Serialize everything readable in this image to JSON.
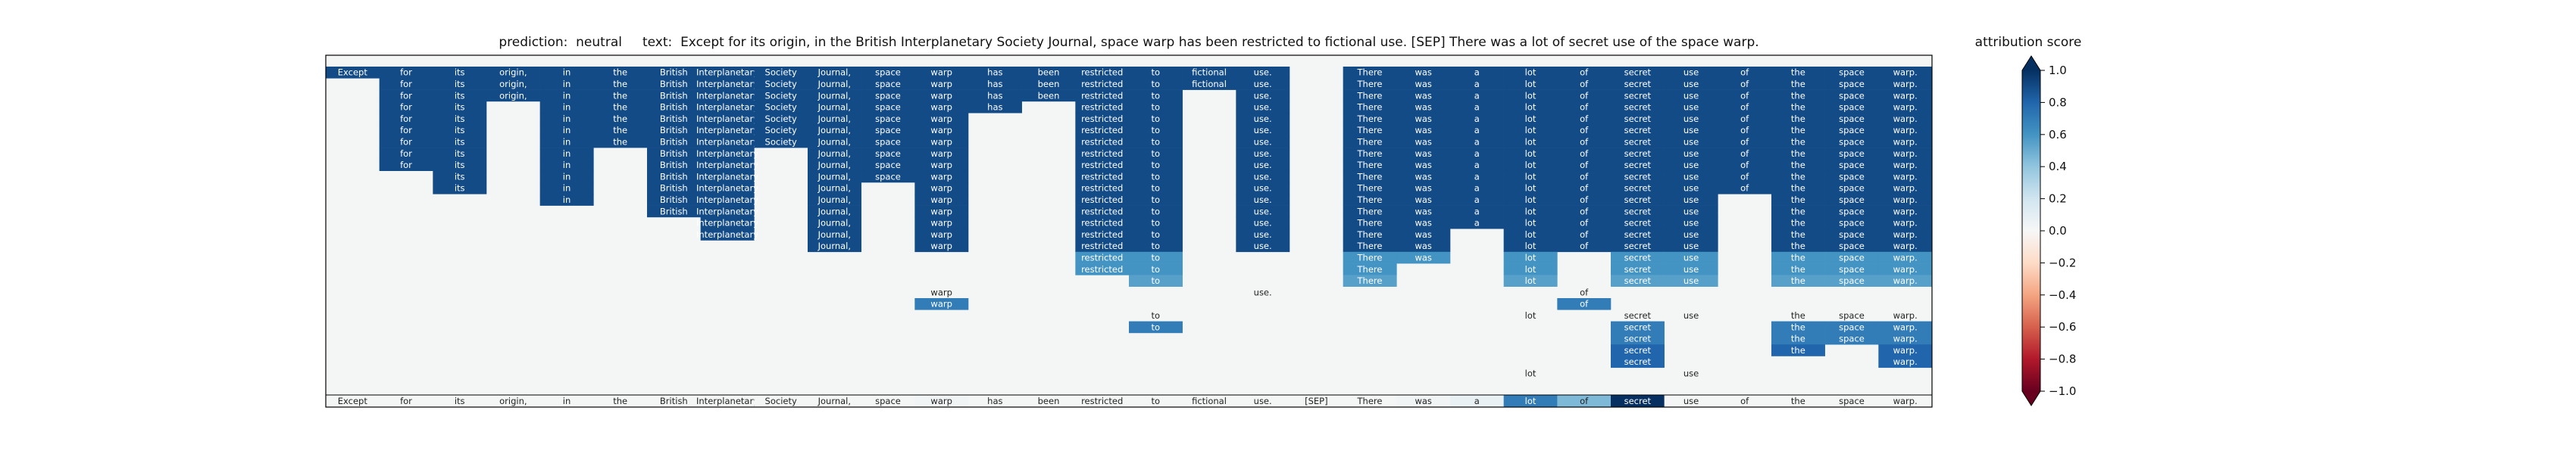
{
  "header": {
    "title": "prediction:  neutral     text:  Except for its origin, in the British Interplanetary Society Journal, space warp has been restricted to fictional use. [SEP] There was a lot of secret use of the space warp."
  },
  "colorbar": {
    "title": "attribution score",
    "ticks": [
      "1.0",
      "0.8",
      "0.6",
      "0.4",
      "0.2",
      "0.0",
      "−0.2",
      "−0.4",
      "−0.6",
      "−0.8",
      "−1.0"
    ]
  },
  "chart_data": {
    "type": "heatmap",
    "title": "prediction:  neutral     text:  Except for its origin, in the British Interplanetary Society Journal, space warp has been restricted to fictional use. [SEP] There was a lot of secret use of the space warp.",
    "xlabel": "",
    "ylabel": "",
    "value_range": [
      -1.0,
      1.0
    ],
    "colormap": "RdBu",
    "background_color": "#f4f6f6",
    "tokens": [
      "Except",
      "for",
      "its",
      "origin,",
      "in",
      "the",
      "British",
      "Interplanetary",
      "Society",
      "Journal,",
      "space",
      "warp",
      "has",
      "been",
      "restricted",
      "to",
      "fictional",
      "use.",
      "[SEP]",
      "There",
      "was",
      "a",
      "lot",
      "of",
      "secret",
      "use",
      "of",
      "the",
      "space",
      "warp."
    ],
    "layers": [
      {
        "label": "Except for its origin, in the British Interplanetary Society Journal, space warp has been restricted to fictional use. There was a lot of secret use of the space warp.",
        "values": [
          0.9,
          0.9,
          0.9,
          0.9,
          0.9,
          0.9,
          0.9,
          0.9,
          0.9,
          0.9,
          0.9,
          0.9,
          0.9,
          0.9,
          0.9,
          0.9,
          0.9,
          0.9,
          null,
          0.9,
          0.9,
          0.9,
          0.9,
          0.9,
          0.9,
          0.9,
          0.9,
          0.9,
          0.9,
          0.9
        ]
      },
      {
        "label": "for its origin, in the British Interplanetary Society Journal, space warp has been restricted to fictional use. There was a lot of secret use of the space warp.",
        "values": [
          null,
          0.9,
          0.9,
          0.9,
          0.9,
          0.9,
          0.9,
          0.9,
          0.9,
          0.9,
          0.9,
          0.9,
          0.9,
          0.9,
          0.9,
          0.9,
          0.9,
          0.9,
          null,
          0.9,
          0.9,
          0.9,
          0.9,
          0.9,
          0.9,
          0.9,
          0.9,
          0.9,
          0.9,
          0.9
        ]
      },
      {
        "label": "for its origin, in the British Interplanetary Society Journal, space warp has been restricted to use. There was a lot of secret use of the space warp.",
        "values": [
          null,
          0.9,
          0.9,
          0.9,
          0.9,
          0.9,
          0.9,
          0.9,
          0.9,
          0.9,
          0.9,
          0.9,
          0.9,
          0.9,
          0.9,
          0.9,
          null,
          0.9,
          null,
          0.9,
          0.9,
          0.9,
          0.9,
          0.9,
          0.9,
          0.9,
          0.9,
          0.9,
          0.9,
          0.9
        ]
      },
      {
        "label": "for its in the British Interplanetary Society Journal, space warp has restricted to use. There was a lot of secret use of the space warp.",
        "values": [
          null,
          0.9,
          0.9,
          null,
          0.9,
          0.9,
          0.9,
          0.9,
          0.9,
          0.9,
          0.9,
          0.9,
          0.9,
          null,
          0.9,
          0.9,
          null,
          0.9,
          null,
          0.9,
          0.9,
          0.9,
          0.9,
          0.9,
          0.9,
          0.9,
          0.9,
          0.9,
          0.9,
          0.9
        ]
      },
      {
        "label": "for its in the British Interplanetary Society Journal, space warp restricted to use. There was a lot of secret use of the space warp.",
        "values": [
          null,
          0.9,
          0.9,
          null,
          0.9,
          0.9,
          0.9,
          0.9,
          0.9,
          0.9,
          0.9,
          0.9,
          null,
          null,
          0.9,
          0.9,
          null,
          0.9,
          null,
          0.9,
          0.9,
          0.9,
          0.9,
          0.9,
          0.9,
          0.9,
          0.9,
          0.9,
          0.9,
          0.9
        ]
      },
      {
        "label": "for its in the British Interplanetary Society Journal, space warp restricted to use. There was a lot of secret use of the space warp.",
        "values": [
          null,
          0.9,
          0.9,
          null,
          0.9,
          0.9,
          0.9,
          0.9,
          0.9,
          0.9,
          0.9,
          0.9,
          null,
          null,
          0.9,
          0.9,
          null,
          0.9,
          null,
          0.9,
          0.9,
          0.9,
          0.9,
          0.9,
          0.9,
          0.9,
          0.9,
          0.9,
          0.9,
          0.9
        ]
      },
      {
        "label": "for its in the British Interplanetary Society Journal, space warp restricted to use. There was a lot of secret use of the space warp.",
        "values": [
          null,
          0.9,
          0.9,
          null,
          0.9,
          0.9,
          0.9,
          0.9,
          0.9,
          0.9,
          0.9,
          0.9,
          null,
          null,
          0.9,
          0.9,
          null,
          0.9,
          null,
          0.9,
          0.9,
          0.9,
          0.9,
          0.9,
          0.9,
          0.9,
          0.9,
          0.9,
          0.9,
          0.9
        ]
      },
      {
        "label": "for its in British Interplanetary Journal, space warp restricted to use. There was a lot of secret use of the space warp.",
        "values": [
          null,
          0.9,
          0.9,
          null,
          0.9,
          null,
          0.9,
          0.9,
          null,
          0.9,
          0.9,
          0.9,
          null,
          null,
          0.9,
          0.9,
          null,
          0.9,
          null,
          0.9,
          0.9,
          0.9,
          0.9,
          0.9,
          0.9,
          0.9,
          0.9,
          0.9,
          0.9,
          0.9
        ]
      },
      {
        "label": "for its in British Interplanetary Journal, space warp restricted to use. There was a lot of secret use of the space warp.",
        "values": [
          null,
          0.9,
          0.9,
          null,
          0.9,
          null,
          0.9,
          0.9,
          null,
          0.9,
          0.9,
          0.9,
          null,
          null,
          0.9,
          0.9,
          null,
          0.9,
          null,
          0.9,
          0.9,
          0.9,
          0.9,
          0.9,
          0.9,
          0.9,
          0.9,
          0.9,
          0.9,
          0.9
        ]
      },
      {
        "label": "its in British Interplanetary Journal, space warp restricted to use. There was a lot of secret use of the space warp.",
        "values": [
          null,
          null,
          0.9,
          null,
          0.9,
          null,
          0.9,
          0.9,
          null,
          0.9,
          0.9,
          0.9,
          null,
          null,
          0.9,
          0.9,
          null,
          0.9,
          null,
          0.9,
          0.9,
          0.9,
          0.9,
          0.9,
          0.9,
          0.9,
          0.9,
          0.9,
          0.9,
          0.9
        ]
      },
      {
        "label": "its in British Interplanetary Journal, warp restricted to use. There was a lot of secret use of the space warp.",
        "values": [
          null,
          null,
          0.9,
          null,
          0.9,
          null,
          0.9,
          0.9,
          null,
          0.9,
          null,
          0.9,
          null,
          null,
          0.9,
          0.9,
          null,
          0.9,
          null,
          0.9,
          0.9,
          0.9,
          0.9,
          0.9,
          0.9,
          0.9,
          0.9,
          0.9,
          0.9,
          0.9
        ]
      },
      {
        "label": "in British Interplanetary Journal, warp restricted to use. There was a lot of secret use the space warp.",
        "values": [
          null,
          null,
          null,
          null,
          0.9,
          null,
          0.9,
          0.9,
          null,
          0.9,
          null,
          0.9,
          null,
          null,
          0.9,
          0.9,
          null,
          0.9,
          null,
          0.9,
          0.9,
          0.9,
          0.9,
          0.9,
          0.9,
          0.9,
          null,
          0.9,
          0.9,
          0.9
        ]
      },
      {
        "label": "British Interplanetary Journal, warp restricted to use. There was a lot of secret use the space warp.",
        "values": [
          null,
          null,
          null,
          null,
          null,
          null,
          0.9,
          0.9,
          null,
          0.9,
          null,
          0.9,
          null,
          null,
          0.9,
          0.9,
          null,
          0.9,
          null,
          0.9,
          0.9,
          0.9,
          0.9,
          0.9,
          0.9,
          0.9,
          null,
          0.9,
          0.9,
          0.9
        ]
      },
      {
        "label": "Interplanetary Journal, warp restricted to use. There was a lot of secret use the space warp.",
        "values": [
          null,
          null,
          null,
          null,
          null,
          null,
          null,
          0.9,
          null,
          0.9,
          null,
          0.9,
          null,
          null,
          0.9,
          0.9,
          null,
          0.9,
          null,
          0.9,
          0.9,
          0.9,
          0.9,
          0.9,
          0.9,
          0.9,
          null,
          0.9,
          0.9,
          0.9
        ]
      },
      {
        "label": "Interplanetary Journal, warp restricted to use. There was lot of secret use the space warp.",
        "values": [
          null,
          null,
          null,
          null,
          null,
          null,
          null,
          0.9,
          null,
          0.9,
          null,
          0.9,
          null,
          null,
          0.9,
          0.9,
          null,
          0.9,
          null,
          0.9,
          0.9,
          null,
          0.9,
          0.9,
          0.9,
          0.9,
          null,
          0.9,
          0.9,
          0.9
        ]
      },
      {
        "label": "Journal, warp restricted to use. There was lot of secret use the space warp.",
        "values": [
          null,
          null,
          null,
          null,
          null,
          null,
          null,
          null,
          null,
          0.9,
          null,
          0.9,
          null,
          null,
          0.9,
          0.9,
          null,
          0.9,
          null,
          0.9,
          0.9,
          null,
          0.9,
          0.9,
          0.9,
          0.9,
          null,
          0.9,
          0.9,
          0.9
        ]
      },
      {
        "label": "restricted to There was lot secret use the space warp.",
        "values": [
          null,
          null,
          null,
          null,
          null,
          null,
          null,
          null,
          null,
          null,
          null,
          null,
          null,
          null,
          0.6,
          0.6,
          null,
          null,
          null,
          0.6,
          0.6,
          null,
          0.6,
          null,
          0.6,
          0.6,
          null,
          0.6,
          0.6,
          0.6
        ]
      },
      {
        "label": "restricted to There lot secret use the space warp.",
        "values": [
          null,
          null,
          null,
          null,
          null,
          null,
          null,
          null,
          null,
          null,
          null,
          null,
          null,
          null,
          0.6,
          0.6,
          null,
          null,
          null,
          0.6,
          null,
          null,
          0.6,
          null,
          0.6,
          0.6,
          null,
          0.6,
          0.6,
          0.6
        ]
      },
      {
        "label": "to There lot secret use the space warp.",
        "values": [
          null,
          null,
          null,
          null,
          null,
          null,
          null,
          null,
          null,
          null,
          null,
          null,
          null,
          null,
          null,
          0.55,
          null,
          null,
          null,
          0.55,
          null,
          null,
          0.55,
          null,
          0.55,
          0.55,
          null,
          0.55,
          0.55,
          0.55
        ]
      },
      {
        "label": "warp use. of",
        "values": [
          null,
          null,
          null,
          null,
          null,
          null,
          null,
          null,
          null,
          null,
          null,
          0.0,
          null,
          null,
          null,
          null,
          null,
          0.0,
          null,
          null,
          null,
          null,
          null,
          0.0,
          null,
          null,
          null,
          null,
          null,
          null
        ]
      },
      {
        "label": "warp of",
        "values": [
          null,
          null,
          null,
          null,
          null,
          null,
          null,
          null,
          null,
          null,
          null,
          0.7,
          null,
          null,
          null,
          null,
          null,
          null,
          null,
          null,
          null,
          null,
          null,
          0.7,
          null,
          null,
          null,
          null,
          null,
          null
        ]
      },
      {
        "label": "to lot secret use the space warp.",
        "values": [
          null,
          null,
          null,
          null,
          null,
          null,
          null,
          null,
          null,
          null,
          null,
          null,
          null,
          null,
          null,
          0.0,
          null,
          null,
          null,
          null,
          null,
          null,
          0.0,
          null,
          0.0,
          0.0,
          null,
          0.0,
          0.0,
          0.0
        ]
      },
      {
        "label": "to secret the space warp.",
        "values": [
          null,
          null,
          null,
          null,
          null,
          null,
          null,
          null,
          null,
          null,
          null,
          null,
          null,
          null,
          null,
          0.7,
          null,
          null,
          null,
          null,
          null,
          null,
          null,
          null,
          0.7,
          null,
          null,
          0.7,
          0.7,
          0.7
        ]
      },
      {
        "label": "secret the space warp.",
        "values": [
          null,
          null,
          null,
          null,
          null,
          null,
          null,
          null,
          null,
          null,
          null,
          null,
          null,
          null,
          null,
          null,
          null,
          null,
          null,
          null,
          null,
          null,
          null,
          null,
          0.7,
          null,
          null,
          0.7,
          0.7,
          0.7
        ]
      },
      {
        "label": "secret the warp.",
        "values": [
          null,
          null,
          null,
          null,
          null,
          null,
          null,
          null,
          null,
          null,
          null,
          null,
          null,
          null,
          null,
          null,
          null,
          null,
          null,
          null,
          null,
          null,
          null,
          null,
          0.8,
          null,
          null,
          0.8,
          null,
          0.8
        ]
      },
      {
        "label": "secret warp.",
        "values": [
          null,
          null,
          null,
          null,
          null,
          null,
          null,
          null,
          null,
          null,
          null,
          null,
          null,
          null,
          null,
          null,
          null,
          null,
          null,
          null,
          null,
          null,
          null,
          null,
          0.8,
          null,
          null,
          null,
          null,
          0.8
        ]
      },
      {
        "label": "lot use",
        "values": [
          null,
          null,
          null,
          null,
          null,
          null,
          null,
          null,
          null,
          null,
          null,
          null,
          null,
          null,
          null,
          null,
          null,
          null,
          null,
          null,
          null,
          null,
          0.0,
          null,
          null,
          0.0,
          null,
          null,
          null,
          null
        ]
      }
    ],
    "bottom_row": {
      "values": [
        0.0,
        0.0,
        0.0,
        0.0,
        0.0,
        0.0,
        0.0,
        0.0,
        0.0,
        0.0,
        0.0,
        0.02,
        0.0,
        0.0,
        0.0,
        0.0,
        0.0,
        0.0,
        0.0,
        0.0,
        0.02,
        0.06,
        0.7,
        0.45,
        1.0,
        0.0,
        0.0,
        0.0,
        0.0,
        0.0
      ]
    }
  }
}
